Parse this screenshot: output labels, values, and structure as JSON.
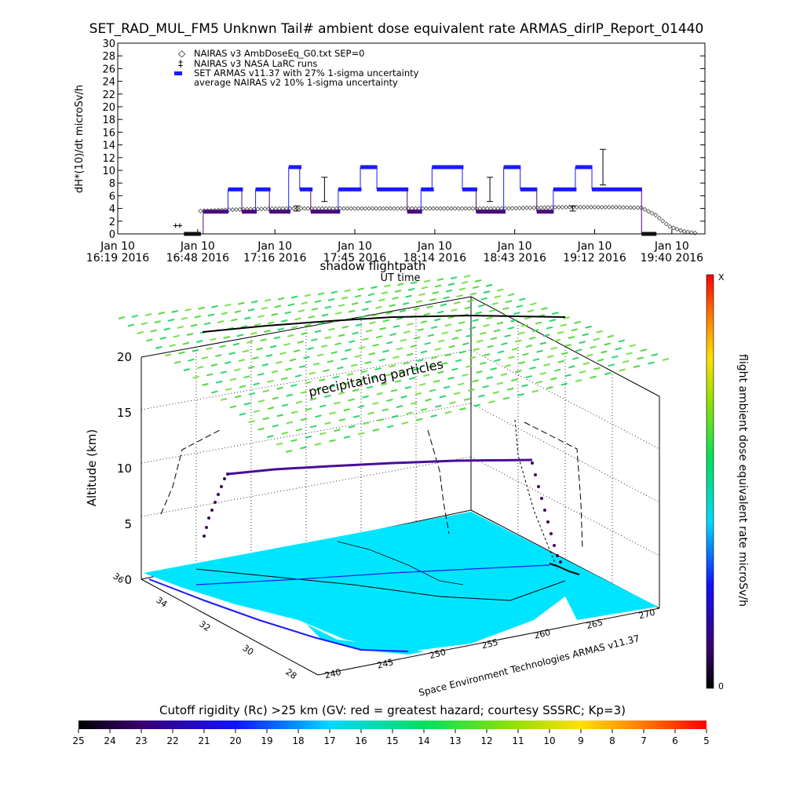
{
  "title": "SET_RAD_MUL_FM5 Unknwn Tail#  ambient dose equivalent rate ARMAS_dirIP_Report_01440",
  "chart_data": [
    {
      "type": "scatter",
      "ylabel": "dH*(10)/dt microSv/h",
      "xlabel": "UT time",
      "ylim": [
        0,
        30
      ],
      "yticks": [
        0,
        2,
        4,
        6,
        8,
        10,
        12,
        14,
        16,
        18,
        20,
        22,
        24,
        26,
        28,
        30
      ],
      "xrange_minutes": [
        0,
        213
      ],
      "xticks": [
        {
          "minute": 0,
          "date": "Jan 10",
          "label": "16:19  2016"
        },
        {
          "minute": 29,
          "date": "Jan 10",
          "label": "16:48  2016"
        },
        {
          "minute": 57,
          "date": "Jan 10",
          "label": "17:16  2016"
        },
        {
          "minute": 86,
          "date": "Jan 10",
          "label": "17:45  2016"
        },
        {
          "minute": 115,
          "date": "Jan 10",
          "label": "18:14  2016"
        },
        {
          "minute": 144,
          "date": "Jan 10",
          "label": "18:43  2016"
        },
        {
          "minute": 173,
          "date": "Jan 10",
          "label": "19:12  2016"
        },
        {
          "minute": 201,
          "date": "Jan 10",
          "label": "19:40  2016"
        }
      ],
      "legend": [
        "NAIRAS v3 AmbDoseEq_G0.txt SEP=0",
        "NAIRAS v3 NASA LaRC runs",
        "SET ARMAS v11.37 with 27% 1-sigma uncertainty",
        "average NAIRAS v2 10% 1-sigma uncertainty"
      ],
      "legend_position": "top-left",
      "armas_x_min": [
        [
          24,
          30
        ],
        [
          31,
          40
        ],
        [
          40,
          45
        ],
        [
          45,
          50
        ],
        [
          50,
          55
        ],
        [
          55,
          62
        ],
        [
          62,
          66
        ],
        [
          66,
          70
        ],
        [
          70,
          80
        ],
        [
          80,
          88
        ],
        [
          88,
          94
        ],
        [
          94,
          105
        ],
        [
          105,
          110
        ],
        [
          110,
          114
        ],
        [
          114,
          125
        ],
        [
          125,
          130
        ],
        [
          130,
          140
        ],
        [
          140,
          146
        ],
        [
          146,
          152
        ],
        [
          152,
          158
        ],
        [
          158,
          166
        ],
        [
          166,
          172
        ],
        [
          172,
          190
        ],
        [
          190,
          195
        ]
      ],
      "armas_y": [
        0,
        3.5,
        7,
        3.5,
        7,
        3.5,
        10.5,
        7,
        3.5,
        7,
        10.5,
        7,
        3.5,
        7,
        10.5,
        7,
        3.5,
        10.5,
        7,
        3.5,
        7,
        10.5,
        7,
        0
      ],
      "nairas_x": [
        30,
        40,
        50,
        60,
        70,
        80,
        90,
        100,
        110,
        120,
        130,
        140,
        150,
        160,
        170,
        180,
        190,
        195,
        200,
        205,
        210
      ],
      "nairas_y": [
        3.6,
        3.8,
        3.9,
        4.0,
        4.0,
        4.0,
        4.0,
        4.0,
        4.0,
        4.0,
        4.0,
        4.0,
        4.1,
        4.2,
        4.2,
        4.2,
        4.1,
        3.0,
        1.2,
        0.4,
        0.1
      ],
      "errorbars": [
        {
          "x": 65,
          "y": 4.0,
          "err": 0.4
        },
        {
          "x": 75,
          "y": 7.0,
          "err": 1.9
        },
        {
          "x": 135,
          "y": 7.0,
          "err": 1.9
        },
        {
          "x": 165,
          "y": 4.0,
          "err": 0.4
        },
        {
          "x": 176,
          "y": 10.5,
          "err": 2.8
        }
      ]
    },
    {
      "type": "3d-trajectory",
      "zlabel": "Altitude (km)",
      "zticks": [
        0,
        5,
        10,
        15,
        20
      ],
      "lat_ticks": [
        36,
        34,
        32,
        30,
        28
      ],
      "lon_ticks": [
        240,
        245,
        250,
        255,
        260,
        265,
        270
      ],
      "top_label": "shadow flightpath",
      "annotation": "precipitating particles",
      "xlabel": "UT time",
      "colorbar_label": "flight ambient dose equivalent rate microSv/h",
      "colorbar_top": "X",
      "colorbar_bottom": "0",
      "footer": "Space Environment Technologies ARMAS v11.37"
    }
  ],
  "bottom_colorbar": {
    "title": "Cutoff rigidity (Rc) >25 km (GV: red = greatest hazard; courtesy SSSRC; Kp=3)",
    "ticks": [
      "25",
      "24",
      "23",
      "22",
      "21",
      "20",
      "19",
      "18",
      "17",
      "16",
      "15",
      "14",
      "13",
      "12",
      "11",
      "10",
      "9",
      "8",
      "7",
      "6",
      "5"
    ]
  },
  "colors": {
    "armas": "#1a1aff",
    "armas_low": "#4b0c7a",
    "map": "#00e5ff",
    "grid_green": "#2bd86a"
  }
}
